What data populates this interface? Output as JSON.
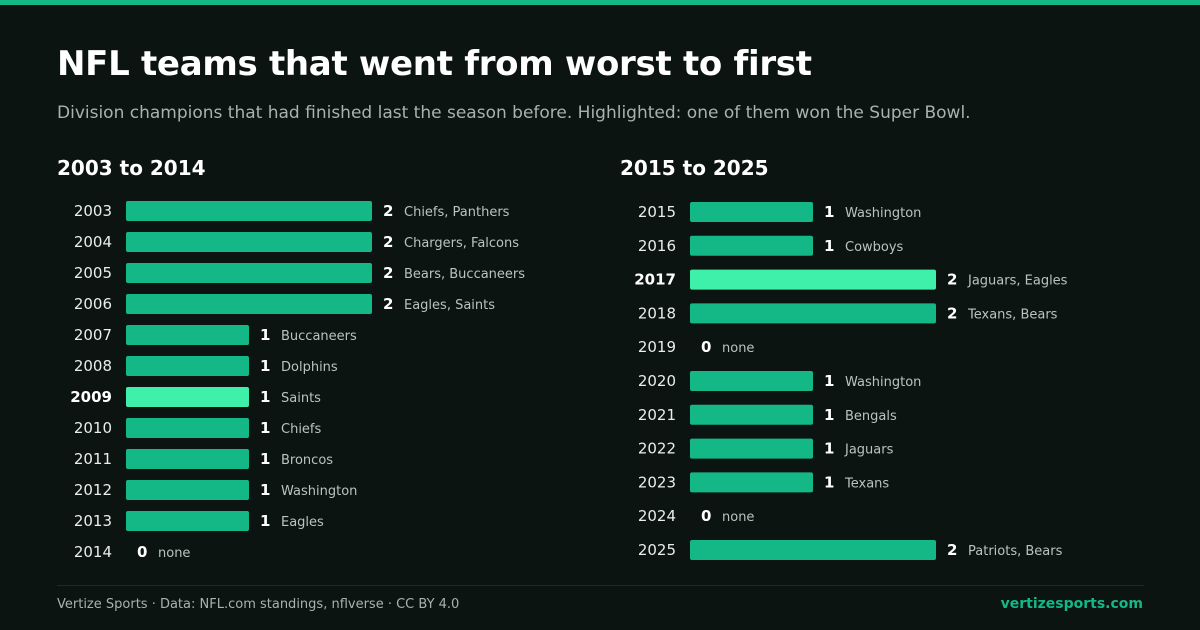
{
  "header": {
    "title": "NFL teams that went from worst to first",
    "subtitle": "Division champions that had finished last the season before. Highlighted: one of them won the Super Bowl."
  },
  "colors": {
    "accent": "#13b886",
    "highlight": "#3ff0ab",
    "background": "#0c1412"
  },
  "chart_data": [
    {
      "type": "bar",
      "orientation": "horizontal",
      "title": "2003 to 2014",
      "xlim": [
        0,
        2
      ],
      "categories": [
        "2003",
        "2004",
        "2005",
        "2006",
        "2007",
        "2008",
        "2009",
        "2010",
        "2011",
        "2012",
        "2013",
        "2014"
      ],
      "values": [
        2,
        2,
        2,
        2,
        1,
        1,
        1,
        1,
        1,
        1,
        1,
        0
      ],
      "teams": [
        "Chiefs, Panthers",
        "Chargers, Falcons",
        "Bears, Buccaneers",
        "Eagles, Saints",
        "Buccaneers",
        "Dolphins",
        "Saints",
        "Chiefs",
        "Broncos",
        "Washington",
        "Eagles",
        "none"
      ],
      "highlighted": [
        "2009"
      ]
    },
    {
      "type": "bar",
      "orientation": "horizontal",
      "title": "2015 to 2025",
      "xlim": [
        0,
        2
      ],
      "categories": [
        "2015",
        "2016",
        "2017",
        "2018",
        "2019",
        "2020",
        "2021",
        "2022",
        "2023",
        "2024",
        "2025"
      ],
      "values": [
        1,
        1,
        2,
        2,
        0,
        1,
        1,
        1,
        1,
        0,
        2
      ],
      "teams": [
        "Washington",
        "Cowboys",
        "Jaguars, Eagles",
        "Texans, Bears",
        "none",
        "Washington",
        "Bengals",
        "Jaguars",
        "Texans",
        "none",
        "Patriots, Bears"
      ],
      "highlighted": [
        "2017"
      ]
    }
  ],
  "footer": {
    "source": "Vertize Sports · Data: NFL.com standings, nflverse · CC BY 4.0",
    "site": "vertizesports.com"
  }
}
